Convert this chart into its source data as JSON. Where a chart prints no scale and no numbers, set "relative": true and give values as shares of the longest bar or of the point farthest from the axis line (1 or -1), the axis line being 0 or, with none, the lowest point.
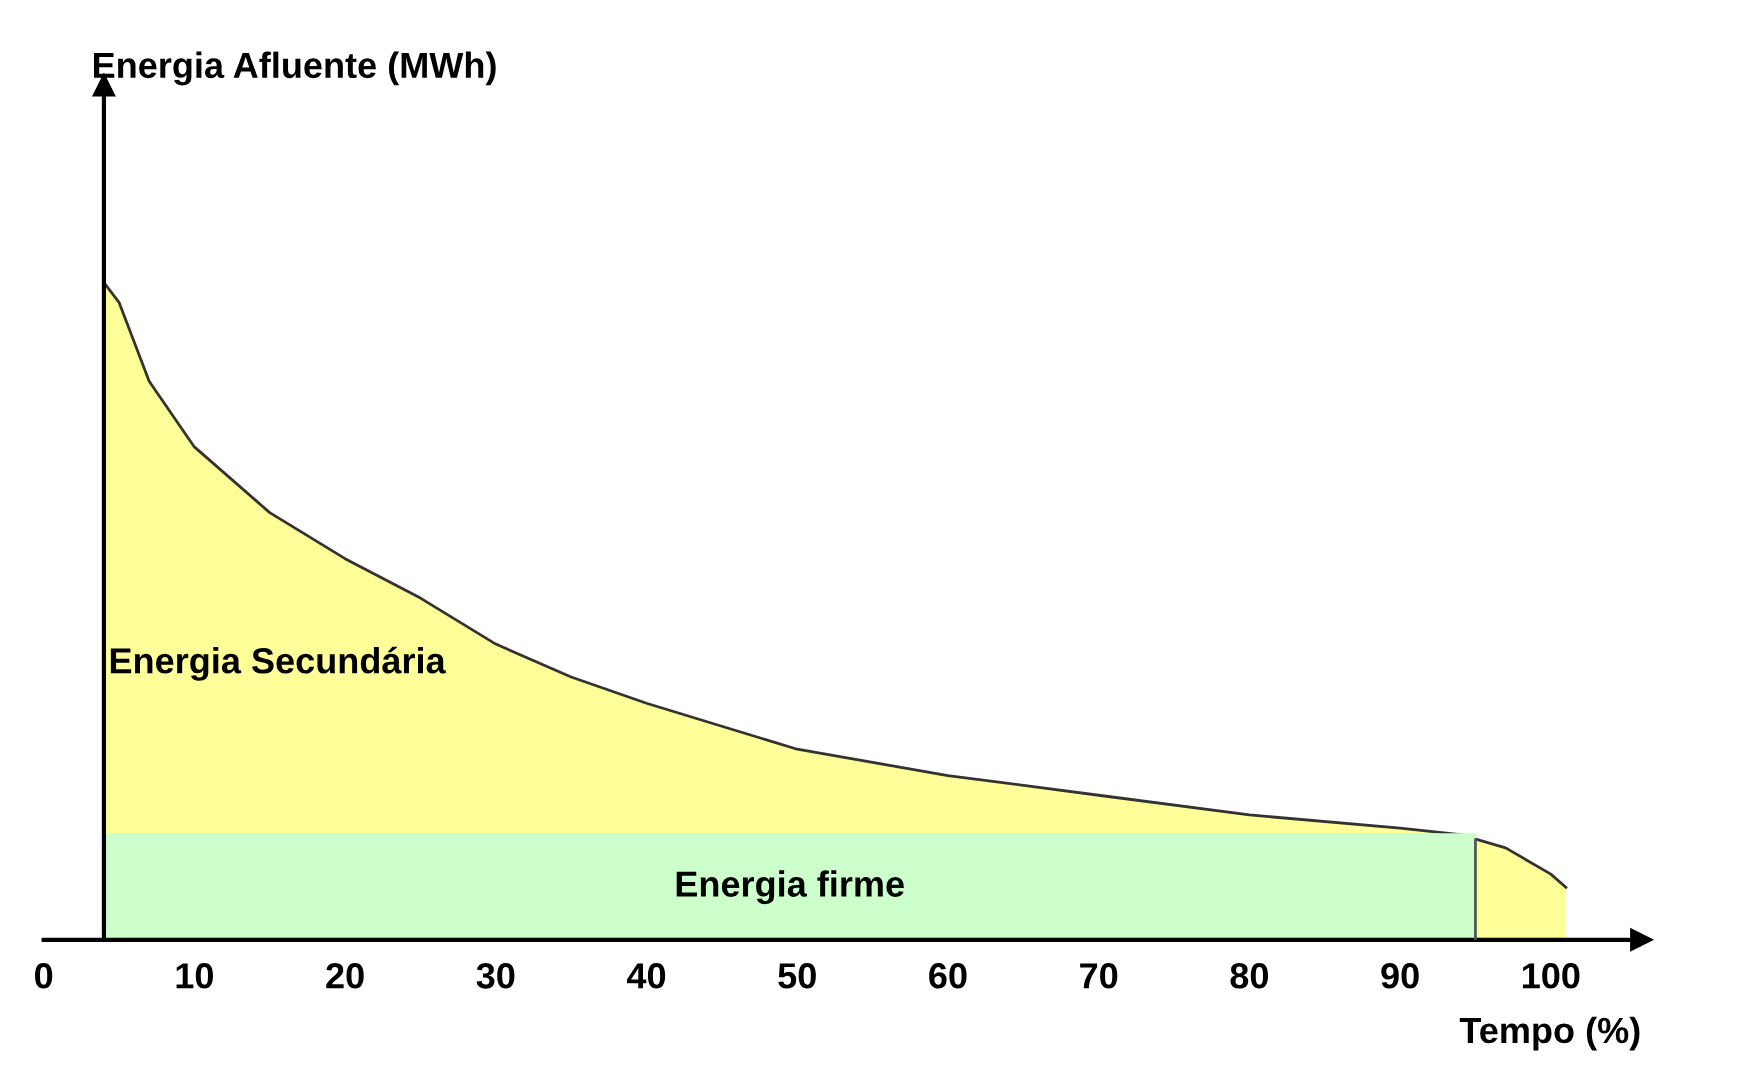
{
  "chart_data": {
    "type": "area",
    "relative": true,
    "annotations": [
      "Energia Afluente (MWh)"
    ],
    "xlabel": "Tempo (%)",
    "ref_lines": [
      {
        "axis": "x",
        "value": 4,
        "color": "#000000"
      },
      {
        "axis": "x",
        "value": 95,
        "color": "#555555"
      }
    ],
    "xlim": [
      0,
      106
    ],
    "xticks": [
      0,
      10,
      20,
      30,
      40,
      50,
      60,
      70,
      80,
      90,
      100
    ],
    "grid": false,
    "legend": false,
    "series": [
      {
        "name": "Energia Secundária",
        "color": "#ffff99",
        "x": [
          4,
          5,
          7,
          10,
          15,
          20,
          25,
          30,
          35,
          40,
          50,
          60,
          70,
          80,
          90,
          94,
          97,
          100,
          101
        ],
        "values": [
          1.0,
          0.97,
          0.85,
          0.75,
          0.65,
          0.58,
          0.52,
          0.45,
          0.4,
          0.36,
          0.29,
          0.25,
          0.22,
          0.19,
          0.17,
          0.16,
          0.14,
          0.1,
          0.08
        ]
      },
      {
        "name": "Energia firme",
        "color": "#ccffcc",
        "x": [
          4,
          95
        ],
        "values": [
          0.16,
          0.16
        ]
      }
    ]
  }
}
